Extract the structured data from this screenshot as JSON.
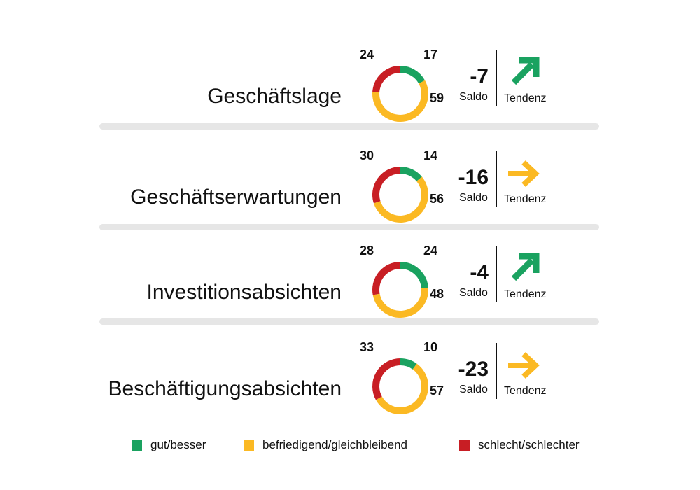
{
  "colors": {
    "good": "#1aa260",
    "neutral": "#fbb923",
    "bad": "#c81e24"
  },
  "chart_data": {
    "type": "pie",
    "variant": "donut-small-multiples",
    "categories": [
      "gut/besser",
      "befriedigend/gleichbleibend",
      "schlecht/schlechter"
    ],
    "value_labels": [
      "Saldo",
      "Tendenz"
    ],
    "rows": [
      {
        "label": "Geschäftslage",
        "good": 17,
        "neutral": 59,
        "bad": 24,
        "saldo": "-7",
        "trend": "up"
      },
      {
        "label": "Geschäftserwartungen",
        "good": 14,
        "neutral": 56,
        "bad": 30,
        "saldo": "-16",
        "trend": "right"
      },
      {
        "label": "Investitionsabsichten",
        "good": 24,
        "neutral": 48,
        "bad": 28,
        "saldo": "-4",
        "trend": "up"
      },
      {
        "label": "Beschäftigungsabsichten",
        "good": 10,
        "neutral": 57,
        "bad": 33,
        "saldo": "-23",
        "trend": "right"
      }
    ],
    "legend_position": "bottom"
  }
}
